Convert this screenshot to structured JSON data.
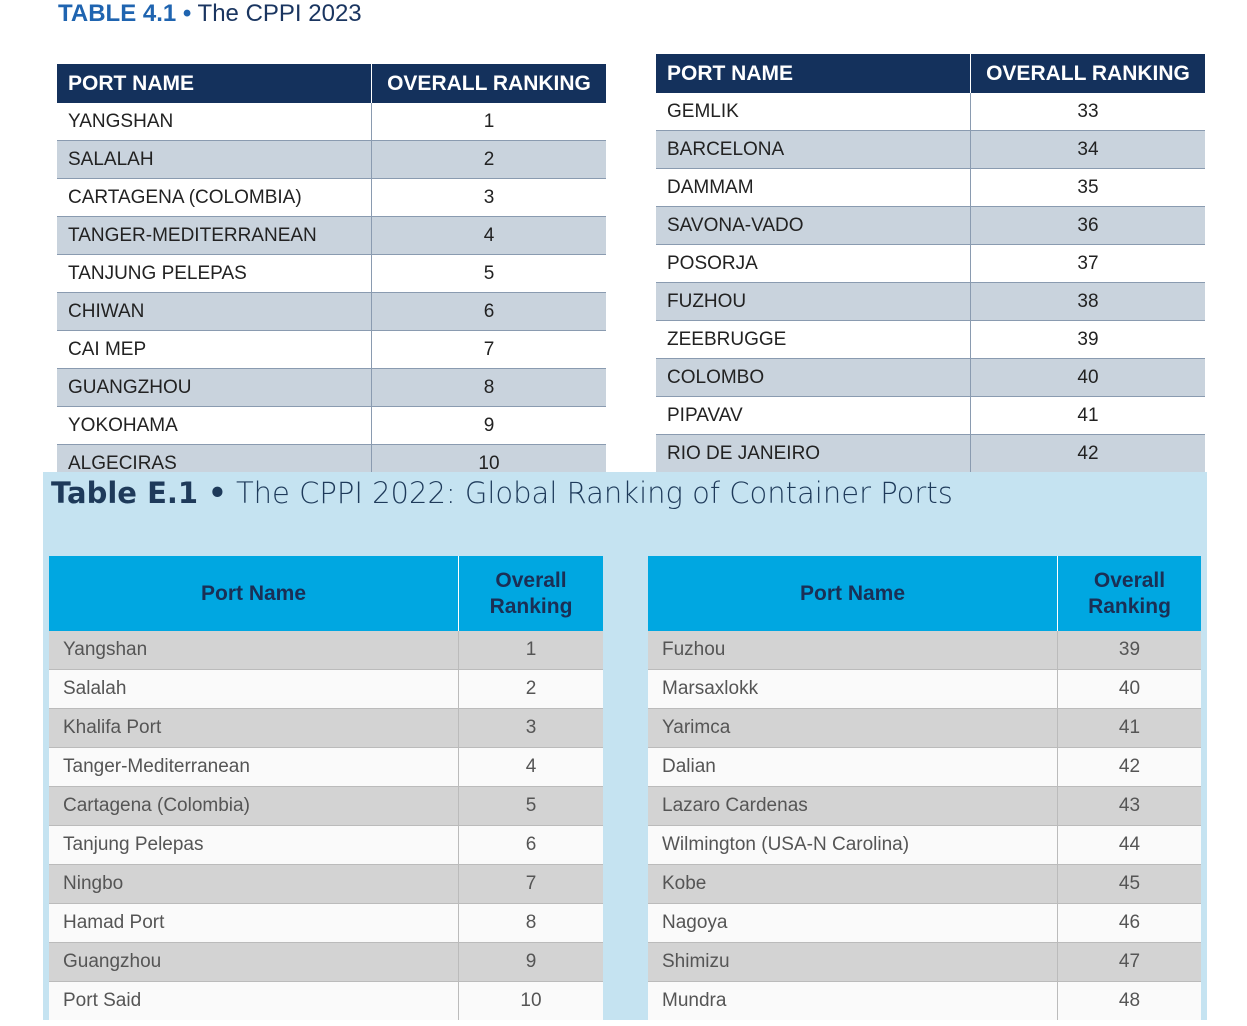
{
  "table_2023": {
    "title": {
      "number": "TABLE 4.1 •",
      "text": "The CPPI 2023"
    },
    "left": {
      "headers": [
        "PORT NAME",
        "OVERALL RANKING"
      ],
      "rows": [
        [
          "YANGSHAN",
          1
        ],
        [
          "SALALAH",
          2
        ],
        [
          "CARTAGENA (COLOMBIA)",
          3
        ],
        [
          "TANGER-MEDITERRANEAN",
          4
        ],
        [
          "TANJUNG PELEPAS",
          5
        ],
        [
          "CHIWAN",
          6
        ],
        [
          "CAI MEP",
          7
        ],
        [
          "GUANGZHOU",
          8
        ],
        [
          "YOKOHAMA",
          9
        ],
        [
          "ALGECIRAS",
          10
        ]
      ]
    },
    "right": {
      "headers": [
        "PORT NAME",
        "OVERALL RANKING"
      ],
      "rows": [
        [
          "GEMLIK",
          33
        ],
        [
          "BARCELONA",
          34
        ],
        [
          "DAMMAM",
          35
        ],
        [
          "SAVONA-VADO",
          36
        ],
        [
          "POSORJA",
          37
        ],
        [
          "FUZHOU",
          38
        ],
        [
          "ZEEBRUGGE",
          39
        ],
        [
          "COLOMBO",
          40
        ],
        [
          "PIPAVAV",
          41
        ],
        [
          "RIO DE JANEIRO",
          42
        ]
      ]
    }
  },
  "table_2022": {
    "title": {
      "number": "Table E.1 •",
      "text": "The CPPI 2022: Global Ranking of Container Ports"
    },
    "left": {
      "headers": [
        "Port Name",
        "Overall Ranking"
      ],
      "rows": [
        [
          "Yangshan",
          1
        ],
        [
          "Salalah",
          2
        ],
        [
          "Khalifa Port",
          3
        ],
        [
          "Tanger-Mediterranean",
          4
        ],
        [
          "Cartagena (Colombia)",
          5
        ],
        [
          "Tanjung Pelepas",
          6
        ],
        [
          "Ningbo",
          7
        ],
        [
          "Hamad Port",
          8
        ],
        [
          "Guangzhou",
          9
        ],
        [
          "Port Said",
          10
        ]
      ]
    },
    "right": {
      "headers": [
        "Port Name",
        "Overall Ranking"
      ],
      "rows": [
        [
          "Fuzhou",
          39
        ],
        [
          "Marsaxlokk",
          40
        ],
        [
          "Yarimca",
          41
        ],
        [
          "Dalian",
          42
        ],
        [
          "Lazaro Cardenas",
          43
        ],
        [
          "Wilmington (USA-N Carolina)",
          44
        ],
        [
          "Kobe",
          45
        ],
        [
          "Nagoya",
          46
        ],
        [
          "Shimizu",
          47
        ],
        [
          "Mundra",
          48
        ]
      ]
    }
  }
}
